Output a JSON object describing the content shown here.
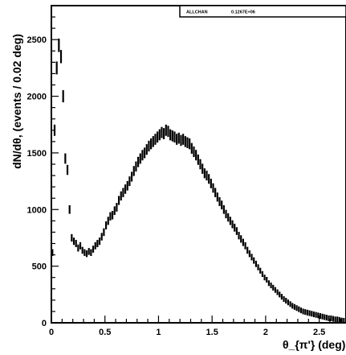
{
  "chart_data": {
    "type": "scatter",
    "title": "",
    "xlabel": "θ_{π'} (deg)",
    "ylabel": "dN/dθ, (events / 0.02 deg)",
    "xlim": [
      0,
      2.75
    ],
    "ylim": [
      0,
      2800
    ],
    "xticks": [
      "0",
      "0.5",
      "1",
      "1.5",
      "2",
      "2.5"
    ],
    "yticks": [
      "0",
      "500",
      "1000",
      "1500",
      "2000",
      "2500"
    ],
    "stats_box": {
      "label": "ALLCHAN",
      "value": "0.1267E+06"
    },
    "series": [
      {
        "x": [
          0.01,
          0.03,
          0.05,
          0.07,
          0.09,
          0.11,
          0.13,
          0.15,
          0.17,
          0.19,
          0.21,
          0.23,
          0.25,
          0.27,
          0.29,
          0.31,
          0.33,
          0.35,
          0.37,
          0.39,
          0.41,
          0.43,
          0.45,
          0.47,
          0.49,
          0.51,
          0.53,
          0.55,
          0.57,
          0.59,
          0.61,
          0.63,
          0.65,
          0.67,
          0.69,
          0.71,
          0.73,
          0.75,
          0.77,
          0.79,
          0.81,
          0.83,
          0.85,
          0.87,
          0.89,
          0.91,
          0.93,
          0.95,
          0.97,
          0.99,
          1.01,
          1.03,
          1.05,
          1.07,
          1.09,
          1.11,
          1.13,
          1.15,
          1.17,
          1.19,
          1.21,
          1.23,
          1.25,
          1.27,
          1.29,
          1.31,
          1.33,
          1.35,
          1.37,
          1.39,
          1.41,
          1.43,
          1.45,
          1.47,
          1.49,
          1.51,
          1.53,
          1.55,
          1.57,
          1.59,
          1.61,
          1.63,
          1.65,
          1.67,
          1.69,
          1.71,
          1.73,
          1.75,
          1.77,
          1.79,
          1.81,
          1.83,
          1.85,
          1.87,
          1.89,
          1.91,
          1.93,
          1.95,
          1.97,
          1.99,
          2.01,
          2.03,
          2.05,
          2.07,
          2.09,
          2.11,
          2.13,
          2.15,
          2.17,
          2.19,
          2.21,
          2.23,
          2.25,
          2.27,
          2.29,
          2.31,
          2.33,
          2.35,
          2.37,
          2.39,
          2.41,
          2.43,
          2.45,
          2.47,
          2.49,
          2.51,
          2.53,
          2.55,
          2.57,
          2.59,
          2.61,
          2.63,
          2.65,
          2.67,
          2.69,
          2.71,
          2.73
        ],
        "y": [
          620,
          1700,
          2250,
          2450,
          2350,
          2000,
          1450,
          1350,
          1000,
          750,
          720,
          700,
          660,
          680,
          640,
          620,
          610,
          630,
          620,
          650,
          680,
          700,
          720,
          760,
          800,
          860,
          900,
          940,
          950,
          990,
          1020,
          1080,
          1120,
          1150,
          1180,
          1210,
          1250,
          1290,
          1340,
          1380,
          1420,
          1450,
          1480,
          1500,
          1530,
          1560,
          1580,
          1600,
          1620,
          1640,
          1660,
          1680,
          1670,
          1700,
          1690,
          1660,
          1650,
          1640,
          1620,
          1630,
          1610,
          1620,
          1600,
          1590,
          1580,
          1540,
          1510,
          1480,
          1440,
          1400,
          1360,
          1320,
          1300,
          1270,
          1230,
          1190,
          1150,
          1110,
          1070,
          1040,
          1000,
          960,
          930,
          900,
          870,
          840,
          810,
          770,
          740,
          710,
          680,
          640,
          610,
          580,
          550,
          520,
          490,
          460,
          430,
          400,
          380,
          350,
          330,
          310,
          290,
          270,
          250,
          230,
          210,
          195,
          180,
          165,
          150,
          140,
          130,
          120,
          110,
          100,
          95,
          90,
          85,
          80,
          75,
          70,
          65,
          60,
          55,
          50,
          45,
          40,
          40,
          35,
          30,
          30,
          25,
          20,
          18
        ]
      }
    ]
  }
}
